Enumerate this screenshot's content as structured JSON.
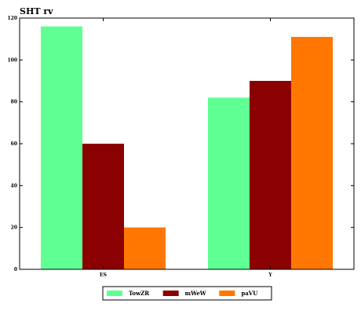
{
  "chart_data": {
    "type": "bar",
    "title": "SHT rv",
    "xlabel": "",
    "ylabel": "",
    "categories": [
      "ES",
      "Y"
    ],
    "series": [
      {
        "name": "TowZR",
        "values": [
          116,
          82
        ],
        "color": "#5fff94"
      },
      {
        "name": "mWeW",
        "values": [
          60,
          90
        ],
        "color": "#8b0000"
      },
      {
        "name": "paVU",
        "values": [
          20,
          111
        ],
        "color": "#ff7700"
      }
    ],
    "ylim": [
      0,
      120
    ],
    "yticks": [
      0,
      20,
      40,
      60,
      80,
      100,
      120
    ],
    "grid": false,
    "legend_position": "bottom-center"
  }
}
